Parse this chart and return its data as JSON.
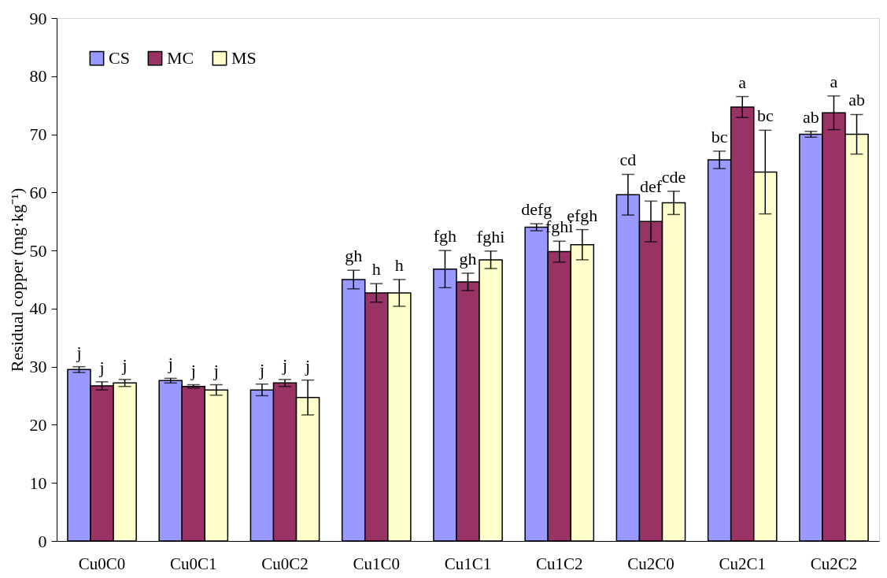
{
  "chart_data": {
    "type": "bar",
    "ylabel": "Residual copper (mg·kg⁻¹)",
    "categories": [
      "Cu0C0",
      "Cu0C1",
      "Cu0C2",
      "Cu1C0",
      "Cu1C1",
      "Cu1C2",
      "Cu2C0",
      "Cu2C1",
      "Cu2C2"
    ],
    "series": [
      {
        "name": "CS",
        "color": "#9999ff",
        "values": [
          29.5,
          27.6,
          26.0,
          45.0,
          46.8,
          54.0,
          59.6,
          65.6,
          70.0
        ],
        "errors": [
          0.5,
          0.4,
          1.0,
          1.6,
          3.2,
          0.6,
          3.5,
          1.5,
          0.5
        ],
        "value_labels": [
          "j",
          "j",
          "j",
          "gh",
          "fgh",
          "defg",
          "cd",
          "bc",
          "ab"
        ]
      },
      {
        "name": "MC",
        "color": "#993366",
        "values": [
          26.7,
          26.6,
          27.2,
          42.7,
          44.6,
          49.8,
          55.0,
          74.7,
          73.7
        ],
        "errors": [
          0.7,
          0.3,
          0.6,
          1.6,
          1.5,
          1.8,
          3.5,
          1.8,
          2.9
        ],
        "value_labels": [
          "j",
          "j",
          "j",
          "h",
          "gh",
          "fghi",
          "def",
          "a",
          "a"
        ]
      },
      {
        "name": "MS",
        "color": "#ffffcc",
        "values": [
          27.2,
          26.0,
          24.7,
          42.7,
          48.4,
          51.0,
          58.2,
          63.5,
          70.0
        ],
        "errors": [
          0.6,
          0.9,
          3.0,
          2.3,
          1.5,
          2.6,
          2.0,
          7.2,
          3.4
        ],
        "value_labels": [
          "j",
          "j",
          "j",
          "h",
          "fghi",
          "efgh",
          "cde",
          "bc",
          "ab"
        ]
      }
    ],
    "ylim": [
      0,
      90
    ],
    "yticks": [
      0,
      10,
      20,
      30,
      40,
      50,
      60,
      70,
      80,
      90
    ],
    "grid": false,
    "legend": "top left"
  }
}
